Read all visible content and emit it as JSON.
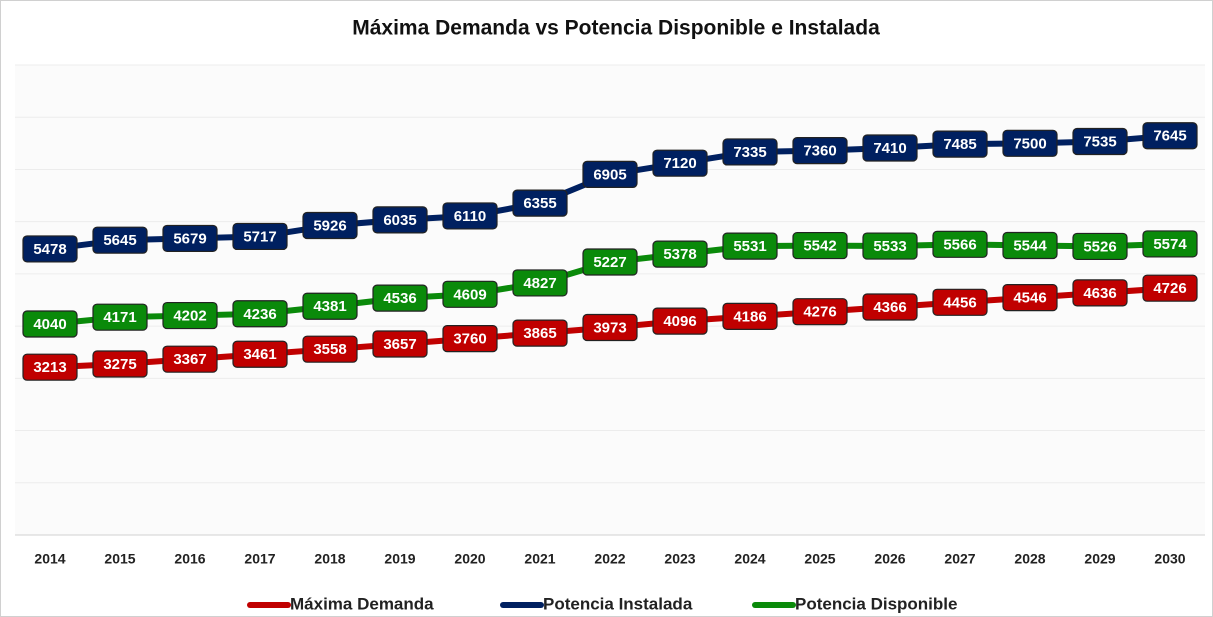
{
  "chart_data": {
    "type": "line",
    "title": "Máxima Demanda vs Potencia Disponible e Instalada",
    "categories": [
      "2014",
      "2015",
      "2016",
      "2017",
      "2018",
      "2019",
      "2020",
      "2021",
      "2022",
      "2023",
      "2024",
      "2025",
      "2026",
      "2027",
      "2028",
      "2029",
      "2030"
    ],
    "series": [
      {
        "name": "Máxima Demanda",
        "color": "#c00000",
        "values": [
          3213,
          3275,
          3367,
          3461,
          3558,
          3657,
          3760,
          3865,
          3973,
          4096,
          4186,
          4276,
          4366,
          4456,
          4546,
          4636,
          4726
        ]
      },
      {
        "name": "Potencia Instalada",
        "color": "#002060",
        "values": [
          5478,
          5645,
          5679,
          5717,
          5926,
          6035,
          6110,
          6355,
          6905,
          7120,
          7335,
          7360,
          7410,
          7485,
          7500,
          7535,
          7645
        ]
      },
      {
        "name": "Potencia Disponible",
        "color": "#0a8a0a",
        "values": [
          4040,
          4171,
          4202,
          4236,
          4381,
          4536,
          4609,
          4827,
          5227,
          5378,
          5531,
          5542,
          5533,
          5566,
          5544,
          5526,
          5574
        ]
      }
    ],
    "ylim": [
      0,
      9000
    ],
    "yticks": [
      0,
      1000,
      2000,
      3000,
      4000,
      5000,
      6000,
      7000,
      8000,
      9000
    ],
    "grid": true,
    "legend": "bottom"
  }
}
